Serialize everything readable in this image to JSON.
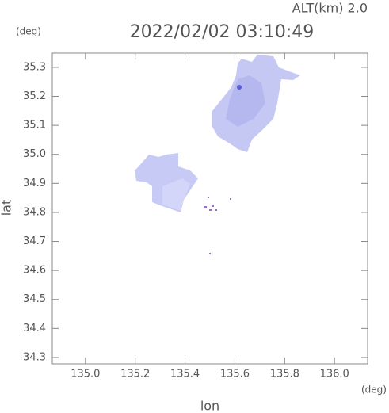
{
  "chart_data": {
    "type": "map",
    "title": "2022/02/02 03:10:49",
    "subtitle": "ALT(km)  2.0",
    "y_unit": "(deg)",
    "x_unit": "(deg)",
    "x_label": "lon",
    "y_label": "lat",
    "xlim": [
      134.867,
      136.133
    ],
    "ylim": [
      34.278,
      35.349
    ],
    "xticks": [
      {
        "value": 135.0,
        "label": "135.0"
      },
      135.2,
      135.4,
      135.6,
      135.8,
      {
        "value": 136.0,
        "label": "136.0"
      }
    ],
    "yticks": [
      34.3,
      34.4,
      34.5,
      34.6,
      34.7,
      34.8,
      34.9,
      {
        "value": 35.0,
        "label": "35.0"
      },
      35.1,
      35.2,
      35.3
    ]
  }
}
